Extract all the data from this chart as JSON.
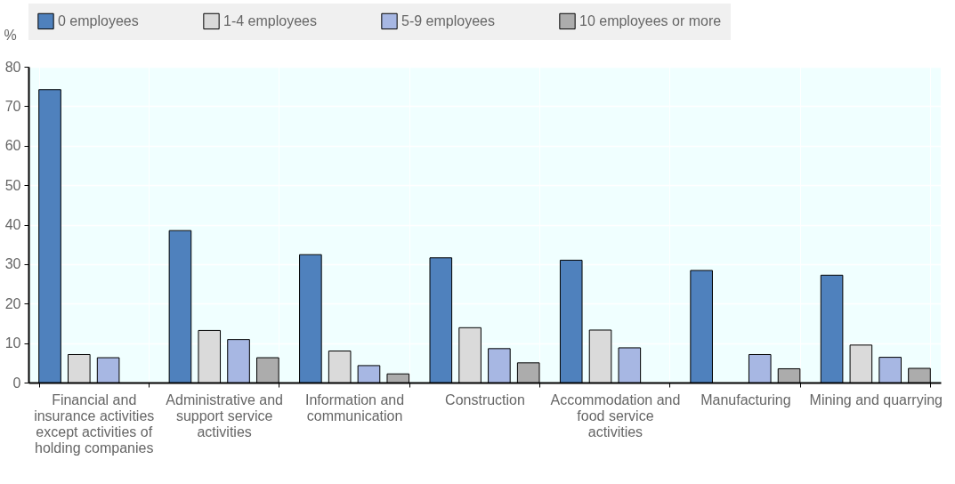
{
  "chart_data": {
    "type": "bar",
    "ylabel": "%",
    "categories": [
      "Financial and insurance activities except activities of holding companies",
      "Administrative and support service activities",
      "Information and communication",
      "Construction",
      "Accommodation and food service activities",
      "Manufacturing",
      "Mining and quarrying"
    ],
    "series": [
      {
        "name": "0 employees",
        "color": "#4f81bd",
        "values": [
          74.2,
          38.5,
          32.4,
          31.6,
          31.0,
          28.4,
          27.2
        ]
      },
      {
        "name": "1-4 employees",
        "color": "#dadada",
        "values": [
          7.1,
          13.2,
          8.0,
          13.9,
          13.3,
          null,
          9.5
        ]
      },
      {
        "name": "5-9 employees",
        "color": "#a7b7e3",
        "values": [
          6.3,
          10.9,
          4.3,
          8.6,
          8.8,
          7.1,
          6.4
        ]
      },
      {
        "name": "10 employees or more",
        "color": "#acacac",
        "values": [
          null,
          6.3,
          2.2,
          5.0,
          null,
          3.5,
          3.6
        ]
      }
    ],
    "ylim": [
      0,
      80
    ],
    "yticks": [
      0,
      10,
      20,
      30,
      40,
      50,
      60,
      70,
      80
    ],
    "grid": true,
    "legend": "top"
  }
}
